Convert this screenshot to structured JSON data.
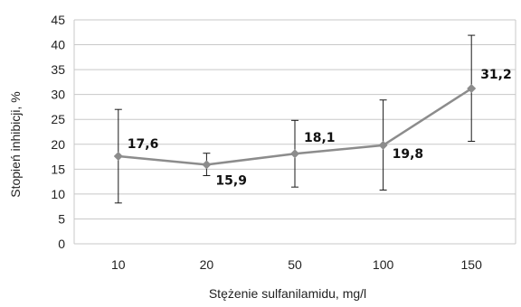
{
  "chart_data": {
    "type": "line",
    "title": "",
    "xlabel": "Stężenie sulfanilamidu,  mg/l",
    "ylabel": "Stopień inhibicji, %",
    "categories": [
      "10",
      "20",
      "50",
      "100",
      "150"
    ],
    "values": [
      17.6,
      15.9,
      18.1,
      19.8,
      31.2
    ],
    "value_labels": [
      "17,6",
      "15,9",
      "18,1",
      "19,8",
      "31,2"
    ],
    "error_low": [
      8.2,
      13.7,
      11.4,
      10.8,
      20.6
    ],
    "error_high": [
      27.0,
      18.2,
      24.8,
      28.9,
      41.9
    ],
    "ylim": [
      0,
      45
    ],
    "yticks": [
      "0",
      "5",
      "10",
      "15",
      "20",
      "25",
      "30",
      "35",
      "40",
      "45"
    ],
    "grid": true,
    "colors": {
      "line": "#8c8c8c",
      "marker": "#8c8c8c",
      "error": "#1a1a1a",
      "grid": "#c8c8c8"
    }
  }
}
